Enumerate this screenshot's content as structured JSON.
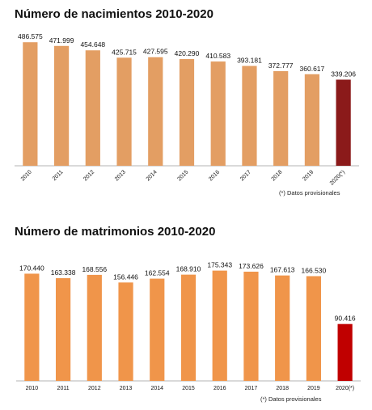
{
  "chart_data": [
    {
      "type": "bar",
      "title": "Número de nacimientos 2010-2020",
      "categories": [
        "2010",
        "2011",
        "2012",
        "2013",
        "2014",
        "2015",
        "2016",
        "2017",
        "2018",
        "2019",
        "2020(*)"
      ],
      "values": [
        486575,
        471999,
        454648,
        425715,
        427595,
        420290,
        410583,
        393181,
        372777,
        360617,
        339206
      ],
      "value_labels": [
        "486.575",
        "471.999",
        "454.648",
        "425.715",
        "427.595",
        "420.290",
        "410.583",
        "393.181",
        "372.777",
        "360.617",
        "339.206"
      ],
      "colors": {
        "bar": "#E39E63",
        "highlight": "#8B1A1A"
      },
      "highlight_index": 10,
      "note": "(*) Datos provisionales",
      "ylim": [
        0,
        500000
      ],
      "tick_rotation": -45,
      "grid": false,
      "legend": "none"
    },
    {
      "type": "bar",
      "title": "Número de matrimonios 2010-2020",
      "categories": [
        "2010",
        "2011",
        "2012",
        "2013",
        "2014",
        "2015",
        "2016",
        "2017",
        "2018",
        "2019",
        "2020(*)"
      ],
      "values": [
        170440,
        163338,
        168556,
        156446,
        162554,
        168910,
        175343,
        173626,
        167613,
        166530,
        90416
      ],
      "value_labels": [
        "170.440",
        "163.338",
        "168.556",
        "156.446",
        "162.554",
        "168.910",
        "175.343",
        "173.626",
        "167.613",
        "166.530",
        "90.416"
      ],
      "colors": {
        "bar": "#F0954A",
        "highlight": "#C00000"
      },
      "highlight_index": 10,
      "note": "(*) Datos provisionales",
      "ylim": [
        0,
        180000
      ],
      "tick_rotation": 0,
      "grid": false,
      "legend": "none"
    }
  ]
}
